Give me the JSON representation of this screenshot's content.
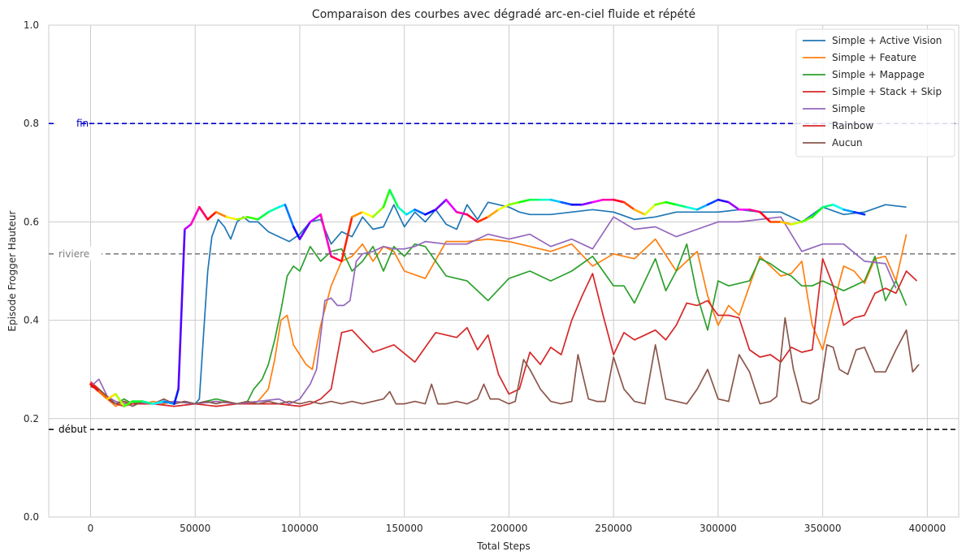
{
  "chart_data": {
    "type": "line",
    "title": "Comparaison des courbes avec dégradé arc-en-ciel fluide et répété",
    "xlabel": "Total Steps",
    "ylabel": "Episode Frogger Hauteur",
    "xlim": [
      -20000,
      415000
    ],
    "ylim": [
      0.0,
      1.0
    ],
    "xticks": [
      0,
      50000,
      100000,
      150000,
      200000,
      250000,
      300000,
      350000,
      400000
    ],
    "xtick_labels": [
      "0",
      "50000",
      "100000",
      "150000",
      "200000",
      "250000",
      "300000",
      "350000",
      "400000"
    ],
    "yticks": [
      0.0,
      0.2,
      0.4,
      0.6,
      0.8,
      1.0
    ],
    "ytick_labels": [
      "0.0",
      "0.2",
      "0.4",
      "0.6",
      "0.8",
      "1.0"
    ],
    "grid": true,
    "legend_position": "top-right",
    "reference_lines": [
      {
        "label": "fin",
        "y": 0.8,
        "color": "#0000cc"
      },
      {
        "label": "riviere",
        "y": 0.535,
        "color": "#808080"
      },
      {
        "label": "début",
        "y": 0.178,
        "color": "#000000"
      }
    ],
    "series": [
      {
        "name": "Simple + Active Vision",
        "color": "#1f77b4",
        "x": [
          0,
          4000,
          8000,
          12000,
          16000,
          20000,
          25000,
          30000,
          35000,
          40000,
          45000,
          50000,
          52000,
          54000,
          56000,
          58000,
          61000,
          64000,
          67000,
          70000,
          73000,
          76000,
          80000,
          85000,
          90000,
          95000,
          100000,
          105000,
          110000,
          115000,
          120000,
          125000,
          130000,
          135000,
          140000,
          145000,
          150000,
          155000,
          160000,
          165000,
          170000,
          175000,
          180000,
          185000,
          190000,
          195000,
          200000,
          205000,
          210000,
          220000,
          230000,
          240000,
          250000,
          260000,
          270000,
          280000,
          290000,
          300000,
          310000,
          320000,
          330000,
          340000,
          350000,
          360000,
          370000,
          380000,
          390000
        ],
        "y": [
          0.27,
          0.26,
          0.24,
          0.23,
          0.235,
          0.23,
          0.235,
          0.23,
          0.235,
          0.23,
          0.235,
          0.23,
          0.24,
          0.37,
          0.5,
          0.57,
          0.605,
          0.59,
          0.565,
          0.6,
          0.61,
          0.6,
          0.6,
          0.58,
          0.57,
          0.56,
          0.575,
          0.6,
          0.605,
          0.555,
          0.58,
          0.57,
          0.61,
          0.585,
          0.59,
          0.635,
          0.59,
          0.62,
          0.6,
          0.625,
          0.595,
          0.585,
          0.635,
          0.605,
          0.64,
          0.635,
          0.63,
          0.62,
          0.615,
          0.615,
          0.62,
          0.625,
          0.62,
          0.605,
          0.61,
          0.62,
          0.62,
          0.62,
          0.625,
          0.62,
          0.62,
          0.6,
          0.63,
          0.615,
          0.62,
          0.635,
          0.63
        ]
      },
      {
        "name": "Simple + Feature",
        "color": "#ff7f0e",
        "x": [
          0,
          4000,
          8000,
          12000,
          16000,
          20000,
          25000,
          30000,
          35000,
          40000,
          50000,
          60000,
          70000,
          80000,
          85000,
          88000,
          91000,
          94000,
          97000,
          100000,
          103000,
          106000,
          110000,
          115000,
          120000,
          125000,
          130000,
          135000,
          140000,
          145000,
          150000,
          160000,
          170000,
          180000,
          190000,
          200000,
          210000,
          220000,
          230000,
          240000,
          250000,
          260000,
          270000,
          280000,
          290000,
          295000,
          300000,
          305000,
          310000,
          320000,
          330000,
          335000,
          340000,
          345000,
          350000,
          355000,
          360000,
          365000,
          370000,
          375000,
          380000,
          385000,
          390000
        ],
        "y": [
          0.27,
          0.26,
          0.24,
          0.225,
          0.235,
          0.23,
          0.23,
          0.235,
          0.23,
          0.235,
          0.23,
          0.235,
          0.23,
          0.235,
          0.26,
          0.32,
          0.4,
          0.41,
          0.35,
          0.33,
          0.31,
          0.3,
          0.39,
          0.47,
          0.52,
          0.53,
          0.555,
          0.52,
          0.55,
          0.54,
          0.5,
          0.485,
          0.56,
          0.56,
          0.565,
          0.56,
          0.55,
          0.54,
          0.555,
          0.51,
          0.535,
          0.525,
          0.565,
          0.5,
          0.54,
          0.45,
          0.39,
          0.43,
          0.41,
          0.53,
          0.49,
          0.495,
          0.52,
          0.39,
          0.34,
          0.43,
          0.51,
          0.5,
          0.475,
          0.525,
          0.53,
          0.48,
          0.575
        ]
      },
      {
        "name": "Simple + Mappage",
        "color": "#2ca02c",
        "x": [
          0,
          4000,
          8000,
          12000,
          16000,
          20000,
          25000,
          30000,
          40000,
          50000,
          60000,
          70000,
          75000,
          78000,
          82000,
          85000,
          88000,
          91000,
          94000,
          97000,
          100000,
          105000,
          110000,
          115000,
          120000,
          125000,
          130000,
          135000,
          140000,
          145000,
          150000,
          155000,
          160000,
          170000,
          180000,
          190000,
          200000,
          210000,
          220000,
          230000,
          240000,
          250000,
          255000,
          260000,
          265000,
          270000,
          275000,
          280000,
          285000,
          290000,
          295000,
          300000,
          305000,
          310000,
          315000,
          320000,
          325000,
          330000,
          335000,
          340000,
          345000,
          350000,
          355000,
          360000,
          365000,
          370000,
          375000,
          380000,
          385000,
          390000
        ],
        "y": [
          0.27,
          0.26,
          0.24,
          0.23,
          0.24,
          0.23,
          0.235,
          0.23,
          0.235,
          0.23,
          0.24,
          0.23,
          0.235,
          0.26,
          0.28,
          0.31,
          0.36,
          0.42,
          0.49,
          0.51,
          0.5,
          0.55,
          0.52,
          0.54,
          0.545,
          0.5,
          0.52,
          0.55,
          0.5,
          0.55,
          0.53,
          0.555,
          0.55,
          0.49,
          0.48,
          0.44,
          0.485,
          0.5,
          0.48,
          0.5,
          0.53,
          0.47,
          0.47,
          0.435,
          0.48,
          0.525,
          0.46,
          0.5,
          0.555,
          0.45,
          0.38,
          0.48,
          0.47,
          0.475,
          0.48,
          0.525,
          0.515,
          0.5,
          0.49,
          0.47,
          0.47,
          0.48,
          0.47,
          0.46,
          0.47,
          0.48,
          0.53,
          0.44,
          0.48,
          0.43
        ]
      },
      {
        "name": "Simple + Stack + Skip",
        "color": "#d62728",
        "x": [
          0,
          4000,
          8000,
          12000,
          16000,
          20000,
          30000,
          40000,
          50000,
          60000,
          70000,
          80000,
          90000,
          100000,
          105000,
          110000,
          115000,
          120000,
          125000,
          135000,
          145000,
          155000,
          165000,
          175000,
          180000,
          185000,
          190000,
          195000,
          200000,
          205000,
          210000,
          215000,
          220000,
          225000,
          230000,
          235000,
          240000,
          245000,
          250000,
          255000,
          260000,
          265000,
          270000,
          275000,
          280000,
          285000,
          290000,
          295000,
          300000,
          305000,
          310000,
          315000,
          320000,
          325000,
          330000,
          335000,
          340000,
          345000,
          350000,
          355000,
          360000,
          365000,
          370000,
          375000,
          380000,
          385000,
          390000,
          395000
        ],
        "y": [
          0.275,
          0.26,
          0.24,
          0.23,
          0.225,
          0.23,
          0.23,
          0.225,
          0.23,
          0.225,
          0.23,
          0.23,
          0.23,
          0.225,
          0.23,
          0.24,
          0.26,
          0.375,
          0.38,
          0.335,
          0.35,
          0.315,
          0.375,
          0.365,
          0.385,
          0.34,
          0.37,
          0.29,
          0.25,
          0.26,
          0.335,
          0.31,
          0.345,
          0.33,
          0.4,
          0.45,
          0.495,
          0.41,
          0.33,
          0.375,
          0.36,
          0.37,
          0.38,
          0.36,
          0.39,
          0.435,
          0.43,
          0.44,
          0.41,
          0.41,
          0.405,
          0.34,
          0.325,
          0.33,
          0.315,
          0.345,
          0.335,
          0.34,
          0.525,
          0.47,
          0.39,
          0.405,
          0.41,
          0.455,
          0.465,
          0.455,
          0.5,
          0.48
        ]
      },
      {
        "name": "Simple",
        "color": "#9467bd",
        "x": [
          0,
          4000,
          8000,
          12000,
          16000,
          20000,
          30000,
          40000,
          50000,
          60000,
          70000,
          80000,
          90000,
          95000,
          100000,
          105000,
          108000,
          112000,
          115000,
          118000,
          121000,
          124000,
          127000,
          130000,
          135000,
          140000,
          145000,
          150000,
          155000,
          160000,
          170000,
          180000,
          190000,
          200000,
          210000,
          220000,
          230000,
          240000,
          250000,
          260000,
          270000,
          280000,
          290000,
          300000,
          310000,
          320000,
          330000,
          340000,
          350000,
          360000,
          370000,
          380000,
          385000
        ],
        "y": [
          0.265,
          0.28,
          0.245,
          0.235,
          0.23,
          0.235,
          0.23,
          0.235,
          0.23,
          0.235,
          0.23,
          0.235,
          0.24,
          0.23,
          0.24,
          0.27,
          0.3,
          0.44,
          0.445,
          0.43,
          0.43,
          0.44,
          0.52,
          0.535,
          0.54,
          0.55,
          0.545,
          0.545,
          0.55,
          0.56,
          0.555,
          0.555,
          0.575,
          0.565,
          0.575,
          0.55,
          0.565,
          0.545,
          0.61,
          0.585,
          0.59,
          0.57,
          0.585,
          0.6,
          0.6,
          0.605,
          0.61,
          0.54,
          0.555,
          0.555,
          0.52,
          0.515,
          0.465
        ]
      },
      {
        "name": "Rainbow",
        "color": "#d62728",
        "gradient": true,
        "x": [
          0,
          4000,
          8000,
          12000,
          16000,
          20000,
          25000,
          30000,
          35000,
          40000,
          42000,
          45000,
          48000,
          52000,
          56000,
          60000,
          65000,
          70000,
          75000,
          80000,
          85000,
          90000,
          93000,
          97000,
          100000,
          105000,
          110000,
          115000,
          120000,
          125000,
          130000,
          135000,
          140000,
          143000,
          147000,
          151000,
          155000,
          160000,
          165000,
          170000,
          175000,
          180000,
          185000,
          190000,
          195000,
          200000,
          205000,
          210000,
          215000,
          220000,
          225000,
          230000,
          235000,
          240000,
          245000,
          250000,
          255000,
          260000,
          265000,
          270000,
          275000,
          280000,
          285000,
          290000,
          295000,
          300000,
          305000,
          310000,
          315000,
          320000,
          325000,
          330000,
          335000,
          340000,
          345000,
          350000,
          355000,
          360000,
          365000,
          370000
        ],
        "y": [
          0.27,
          0.255,
          0.24,
          0.25,
          0.225,
          0.235,
          0.235,
          0.23,
          0.235,
          0.23,
          0.26,
          0.585,
          0.595,
          0.63,
          0.605,
          0.62,
          0.61,
          0.605,
          0.61,
          0.605,
          0.62,
          0.63,
          0.635,
          0.59,
          0.565,
          0.6,
          0.615,
          0.53,
          0.52,
          0.61,
          0.62,
          0.61,
          0.63,
          0.665,
          0.63,
          0.615,
          0.625,
          0.615,
          0.625,
          0.645,
          0.62,
          0.615,
          0.6,
          0.61,
          0.625,
          0.635,
          0.64,
          0.645,
          0.645,
          0.645,
          0.64,
          0.635,
          0.635,
          0.64,
          0.645,
          0.645,
          0.64,
          0.625,
          0.615,
          0.635,
          0.64,
          0.635,
          0.63,
          0.625,
          0.635,
          0.645,
          0.64,
          0.625,
          0.625,
          0.62,
          0.6,
          0.6,
          0.595,
          0.6,
          0.61,
          0.63,
          0.635,
          0.625,
          0.62,
          0.615
        ]
      },
      {
        "name": "Aucun",
        "color": "#8c564b",
        "x": [
          0,
          4000,
          8000,
          12000,
          16000,
          20000,
          25000,
          30000,
          35000,
          40000,
          45000,
          50000,
          55000,
          60000,
          65000,
          70000,
          75000,
          80000,
          85000,
          90000,
          95000,
          100000,
          105000,
          110000,
          115000,
          120000,
          125000,
          130000,
          135000,
          140000,
          143000,
          146000,
          150000,
          155000,
          160000,
          163000,
          166000,
          170000,
          175000,
          180000,
          185000,
          188000,
          191000,
          195000,
          200000,
          203000,
          207000,
          210000,
          215000,
          220000,
          225000,
          230000,
          233000,
          238000,
          242000,
          246000,
          250000,
          255000,
          260000,
          265000,
          270000,
          275000,
          280000,
          285000,
          290000,
          295000,
          300000,
          305000,
          310000,
          315000,
          320000,
          325000,
          328000,
          332000,
          336000,
          340000,
          344000,
          348000,
          352000,
          355000,
          358000,
          362000,
          366000,
          370000,
          375000,
          380000,
          385000,
          390000,
          393000,
          396000
        ],
        "y": [
          0.265,
          0.26,
          0.245,
          0.23,
          0.235,
          0.225,
          0.235,
          0.23,
          0.24,
          0.23,
          0.235,
          0.23,
          0.235,
          0.23,
          0.235,
          0.23,
          0.235,
          0.23,
          0.235,
          0.23,
          0.235,
          0.23,
          0.235,
          0.23,
          0.235,
          0.23,
          0.235,
          0.23,
          0.235,
          0.24,
          0.255,
          0.23,
          0.23,
          0.235,
          0.23,
          0.27,
          0.23,
          0.23,
          0.235,
          0.23,
          0.24,
          0.27,
          0.24,
          0.24,
          0.23,
          0.235,
          0.32,
          0.3,
          0.26,
          0.235,
          0.23,
          0.235,
          0.33,
          0.24,
          0.235,
          0.235,
          0.325,
          0.26,
          0.235,
          0.23,
          0.35,
          0.24,
          0.235,
          0.23,
          0.26,
          0.3,
          0.24,
          0.235,
          0.33,
          0.295,
          0.23,
          0.235,
          0.245,
          0.405,
          0.3,
          0.235,
          0.23,
          0.24,
          0.35,
          0.345,
          0.3,
          0.29,
          0.34,
          0.345,
          0.295,
          0.295,
          0.34,
          0.38,
          0.295,
          0.31
        ]
      }
    ]
  }
}
